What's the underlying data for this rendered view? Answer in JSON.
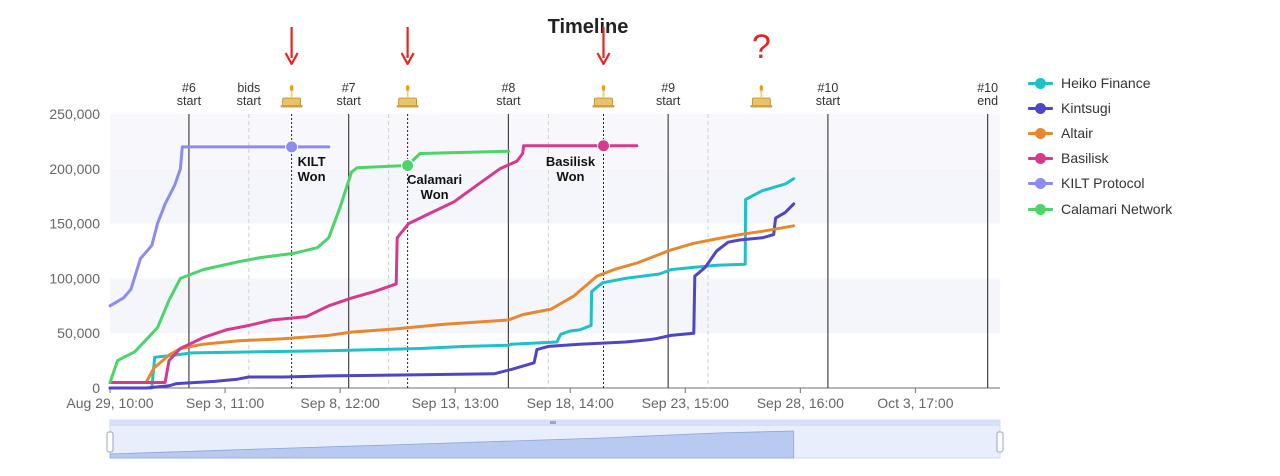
{
  "chart_data": {
    "type": "line",
    "title": "Timeline",
    "xlabel": "",
    "ylabel": "",
    "ylim": [
      0,
      250000
    ],
    "y_ticks": [
      "0",
      "50,000",
      "100,000",
      "150,000",
      "200,000",
      "250,000"
    ],
    "x_range": [
      "Aug 29, 10:00",
      "Oct 7, 10:00"
    ],
    "x_ticks": [
      {
        "date": "Aug 29, 10:00",
        "label": "Aug 29, 10:00"
      },
      {
        "date": "Sep 3, 11:00",
        "label": "Sep 3, 11:00"
      },
      {
        "date": "Sep 8, 12:00",
        "label": "Sep 8, 12:00"
      },
      {
        "date": "Sep 13, 13:00",
        "label": "Sep 13, 13:00"
      },
      {
        "date": "Sep 18, 14:00",
        "label": "Sep 18, 14:00"
      },
      {
        "date": "Sep 23, 15:00",
        "label": "Sep 23, 15:00"
      },
      {
        "date": "Sep 28, 16:00",
        "label": "Sep 28, 16:00"
      },
      {
        "date": "Oct 3, 17:00",
        "label": "Oct 3, 17:00"
      }
    ],
    "grid": "alternating horizontal bands",
    "legend_position": "right",
    "markers": [
      {
        "date": "Sep 1, 21:00",
        "label": "#6\nstart",
        "style": "solid"
      },
      {
        "date": "Sep 4, 12:00",
        "label": "bids\nstart",
        "style": "dashed"
      },
      {
        "date": "Sep 8, 21:00",
        "label": "#7\nstart",
        "style": "solid"
      },
      {
        "date": "Sep 10, 15:00",
        "label": "",
        "style": "dashed"
      },
      {
        "date": "Sep 15, 21:00",
        "label": "#8\nstart",
        "style": "solid"
      },
      {
        "date": "Sep 17, 15:00",
        "label": "",
        "style": "dashed"
      },
      {
        "date": "Sep 22, 21:00",
        "label": "#9\nstart",
        "style": "solid"
      },
      {
        "date": "Sep 24, 15:00",
        "label": "",
        "style": "dashed"
      },
      {
        "date": "Sep 29, 21:00",
        "label": "#10\nstart",
        "style": "solid"
      },
      {
        "date": "Oct 6, 21:00",
        "label": "#10\nend",
        "style": "solid"
      }
    ],
    "winners": [
      {
        "date": "Sep 6, 9:00",
        "value": 220000,
        "label": "KILT\nWon",
        "color": "#8c8cf0",
        "arrow": true,
        "question": false
      },
      {
        "date": "Sep 11, 11:00",
        "value": 203000,
        "label": "Calamari\nWon",
        "color": "#4cd46a",
        "arrow": true,
        "question": false
      },
      {
        "date": "Sep 20, 1:00",
        "value": 221000,
        "label": "Basilisk\nWon",
        "color": "#d63a8f",
        "arrow": true,
        "question": false
      },
      {
        "date": "Sep 26, 23:00",
        "value": null,
        "label": "",
        "color": "",
        "arrow": false,
        "question": true
      }
    ],
    "question_mark": "?",
    "series": [
      {
        "name": "Heiko Finance",
        "color": "#1fc0c8",
        "points": [
          [
            "Aug 29, 10:00",
            0
          ],
          [
            "Aug 31, 6:00",
            0
          ],
          [
            "Aug 31, 9:00",
            28000
          ],
          [
            "Sep 1, 6:00",
            30000
          ],
          [
            "Sep 2, 0:00",
            32000
          ],
          [
            "Sep 5, 0:00",
            33000
          ],
          [
            "Sep 8, 0:00",
            34000
          ],
          [
            "Sep 10, 0:00",
            35000
          ],
          [
            "Sep 12, 0:00",
            36000
          ],
          [
            "Sep 14, 0:00",
            38000
          ],
          [
            "Sep 15, 21:00",
            39000
          ],
          [
            "Sep 16, 0:00",
            40000
          ],
          [
            "Sep 18, 0:00",
            42000
          ],
          [
            "Sep 18, 4:00",
            49000
          ],
          [
            "Sep 18, 14:00",
            52000
          ],
          [
            "Sep 19, 0:00",
            53000
          ],
          [
            "Sep 19, 12:00",
            57000
          ],
          [
            "Sep 19, 12:30",
            88000
          ],
          [
            "Sep 20, 0:00",
            96000
          ],
          [
            "Sep 21, 0:00",
            100000
          ],
          [
            "Sep 22, 12:00",
            104000
          ],
          [
            "Sep 23, 0:00",
            108000
          ],
          [
            "Sep 24, 0:00",
            110000
          ],
          [
            "Sep 25, 0:00",
            112000
          ],
          [
            "Sep 26, 6:00",
            113000
          ],
          [
            "Sep 26, 6:30",
            172000
          ],
          [
            "Sep 27, 0:00",
            180000
          ],
          [
            "Sep 28, 0:00",
            186000
          ],
          [
            "Sep 28, 9:00",
            191000
          ]
        ]
      },
      {
        "name": "Kintsugi",
        "color": "#4e46c4",
        "points": [
          [
            "Aug 29, 10:00",
            0
          ],
          [
            "Aug 31, 0:00",
            0
          ],
          [
            "Sep 1, 0:00",
            2000
          ],
          [
            "Sep 1, 8:00",
            4000
          ],
          [
            "Sep 3, 0:00",
            6000
          ],
          [
            "Sep 4, 0:00",
            8000
          ],
          [
            "Sep 4, 12:00",
            10000
          ],
          [
            "Sep 6, 0:00",
            10000
          ],
          [
            "Sep 8, 0:00",
            11000
          ],
          [
            "Sep 12, 0:00",
            12000
          ],
          [
            "Sep 15, 6:00",
            13000
          ],
          [
            "Sep 16, 0:00",
            17000
          ],
          [
            "Sep 17, 0:00",
            23000
          ],
          [
            "Sep 17, 3:00",
            35000
          ],
          [
            "Sep 17, 15:00",
            38000
          ],
          [
            "Sep 19, 0:00",
            40000
          ],
          [
            "Sep 21, 0:00",
            42000
          ],
          [
            "Sep 22, 0:00",
            44000
          ],
          [
            "Sep 22, 8:00",
            45000
          ],
          [
            "Sep 23, 0:00",
            48000
          ],
          [
            "Sep 24, 0:00",
            50000
          ],
          [
            "Sep 24, 1:00",
            102000
          ],
          [
            "Sep 24, 12:00",
            110000
          ],
          [
            "Sep 25, 0:00",
            125000
          ],
          [
            "Sep 25, 12:00",
            133000
          ],
          [
            "Sep 26, 0:00",
            135000
          ],
          [
            "Sep 27, 0:00",
            137000
          ],
          [
            "Sep 27, 12:00",
            140000
          ],
          [
            "Sep 27, 14:00",
            155000
          ],
          [
            "Sep 28, 0:00",
            160000
          ],
          [
            "Sep 28, 9:00",
            168000
          ]
        ]
      },
      {
        "name": "Altair",
        "color": "#e8882e",
        "points": [
          [
            "Aug 29, 10:00",
            5000
          ],
          [
            "Aug 31, 0:00",
            5000
          ],
          [
            "Aug 31, 8:00",
            18000
          ],
          [
            "Sep 1, 0:00",
            30000
          ],
          [
            "Sep 1, 12:00",
            36000
          ],
          [
            "Sep 2, 12:00",
            40000
          ],
          [
            "Sep 4, 0:00",
            43000
          ],
          [
            "Sep 6, 0:00",
            45000
          ],
          [
            "Sep 8, 0:00",
            48000
          ],
          [
            "Sep 9, 0:00",
            51000
          ],
          [
            "Sep 11, 0:00",
            54000
          ],
          [
            "Sep 13, 0:00",
            58000
          ],
          [
            "Sep 15, 21:00",
            62000
          ],
          [
            "Sep 16, 12:00",
            67000
          ],
          [
            "Sep 17, 18:00",
            72000
          ],
          [
            "Sep 18, 0:00",
            75000
          ],
          [
            "Sep 18, 18:00",
            84000
          ],
          [
            "Sep 19, 18:00",
            102000
          ],
          [
            "Sep 20, 12:00",
            108000
          ],
          [
            "Sep 21, 12:00",
            114000
          ],
          [
            "Sep 22, 6:00",
            120000
          ],
          [
            "Sep 23, 0:00",
            126000
          ],
          [
            "Sep 24, 0:00",
            132000
          ],
          [
            "Sep 25, 0:00",
            136000
          ],
          [
            "Sep 26, 0:00",
            140000
          ],
          [
            "Sep 27, 0:00",
            143000
          ],
          [
            "Sep 28, 9:00",
            148000
          ]
        ]
      },
      {
        "name": "Basilisk",
        "color": "#d63a8f",
        "points": [
          [
            "Aug 29, 10:00",
            5000
          ],
          [
            "Aug 31, 20:00",
            5000
          ],
          [
            "Sep 1, 0:00",
            25000
          ],
          [
            "Sep 1, 12:00",
            36000
          ],
          [
            "Sep 2, 12:00",
            46000
          ],
          [
            "Sep 3, 12:00",
            53000
          ],
          [
            "Sep 4, 12:00",
            57000
          ],
          [
            "Sep 5, 12:00",
            62000
          ],
          [
            "Sep 7, 0:00",
            65000
          ],
          [
            "Sep 8, 0:00",
            75000
          ],
          [
            "Sep 9, 0:00",
            82000
          ],
          [
            "Sep 10, 0:00",
            88000
          ],
          [
            "Sep 10, 23:00",
            95000
          ],
          [
            "Sep 11, 0:00",
            137000
          ],
          [
            "Sep 11, 12:00",
            150000
          ],
          [
            "Sep 12, 12:00",
            160000
          ],
          [
            "Sep 13, 12:00",
            170000
          ],
          [
            "Sep 14, 12:00",
            185000
          ],
          [
            "Sep 15, 12:00",
            200000
          ],
          [
            "Sep 16, 6:00",
            207000
          ],
          [
            "Sep 16, 12:00",
            214000
          ],
          [
            "Sep 16, 13:00",
            221000
          ],
          [
            "Sep 20, 1:00",
            221000
          ],
          [
            "Sep 21, 12:00",
            221000
          ]
        ]
      },
      {
        "name": "KILT Protocol",
        "color": "#8c8cf0",
        "points": [
          [
            "Aug 29, 10:00",
            75000
          ],
          [
            "Aug 30, 0:00",
            82000
          ],
          [
            "Aug 30, 8:00",
            90000
          ],
          [
            "Aug 30, 18:00",
            118000
          ],
          [
            "Aug 31, 6:00",
            130000
          ],
          [
            "Aug 31, 12:00",
            150000
          ],
          [
            "Aug 31, 20:00",
            168000
          ],
          [
            "Sep 1, 6:00",
            185000
          ],
          [
            "Sep 1, 12:00",
            200000
          ],
          [
            "Sep 1, 14:00",
            220000
          ],
          [
            "Sep 6, 9:00",
            220000
          ],
          [
            "Sep 8, 0:00",
            220000
          ]
        ]
      },
      {
        "name": "Calamari Network",
        "color": "#4cd46a",
        "points": [
          [
            "Aug 29, 10:00",
            5000
          ],
          [
            "Aug 29, 18:00",
            25000
          ],
          [
            "Aug 30, 12:00",
            33000
          ],
          [
            "Aug 31, 12:00",
            55000
          ],
          [
            "Sep 1, 0:00",
            80000
          ],
          [
            "Sep 1, 12:00",
            100000
          ],
          [
            "Sep 2, 12:00",
            108000
          ],
          [
            "Sep 4, 0:00",
            115000
          ],
          [
            "Sep 5, 0:00",
            119000
          ],
          [
            "Sep 6, 12:00",
            123000
          ],
          [
            "Sep 7, 12:00",
            128000
          ],
          [
            "Sep 8, 0:00",
            137000
          ],
          [
            "Sep 8, 12:00",
            165000
          ],
          [
            "Sep 9, 0:00",
            197000
          ],
          [
            "Sep 9, 6:00",
            201000
          ],
          [
            "Sep 11, 11:00",
            203000
          ],
          [
            "Sep 12, 0:00",
            214000
          ],
          [
            "Sep 15, 21:00",
            216000
          ]
        ]
      }
    ],
    "overview": {
      "start": "Aug 29, 10:00",
      "end": "Oct 7, 10:00"
    }
  },
  "legend": {
    "items": [
      {
        "name": "Heiko Finance",
        "color": "#1fc0c8"
      },
      {
        "name": "Kintsugi",
        "color": "#4e46c4"
      },
      {
        "name": "Altair",
        "color": "#e8882e"
      },
      {
        "name": "Basilisk",
        "color": "#d63a8f"
      },
      {
        "name": "KILT Protocol",
        "color": "#8c8cf0"
      },
      {
        "name": "Calamari Network",
        "color": "#4cd46a"
      }
    ]
  }
}
